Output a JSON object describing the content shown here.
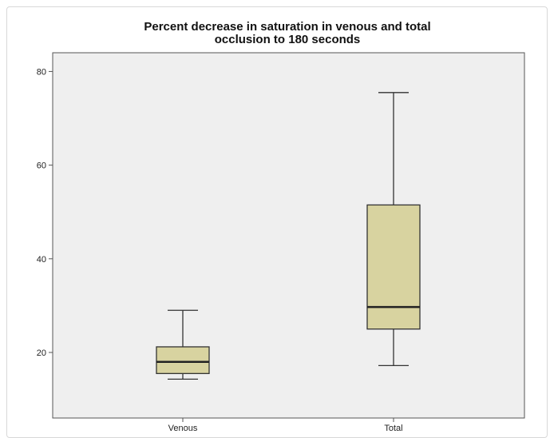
{
  "chart_data": {
    "type": "box",
    "title_lines": [
      "Percent decrease in saturation in venous and total",
      "occlusion to 180 seconds"
    ],
    "xlabel": "",
    "ylabel": "",
    "categories": [
      "Venous",
      "Total"
    ],
    "yticks": [
      20,
      40,
      60,
      80
    ],
    "ylim": [
      6,
      84
    ],
    "grid": false,
    "colors": {
      "plot_bg": "#efefef",
      "box_fill": "#d8d3a0",
      "line": "#333333"
    },
    "boxes": [
      {
        "name": "Venous",
        "min": 14.3,
        "q1": 15.5,
        "median": 18.0,
        "q3": 21.2,
        "max": 29.0
      },
      {
        "name": "Total",
        "min": 17.2,
        "q1": 25.0,
        "median": 29.7,
        "q3": 51.5,
        "max": 75.5
      }
    ]
  }
}
